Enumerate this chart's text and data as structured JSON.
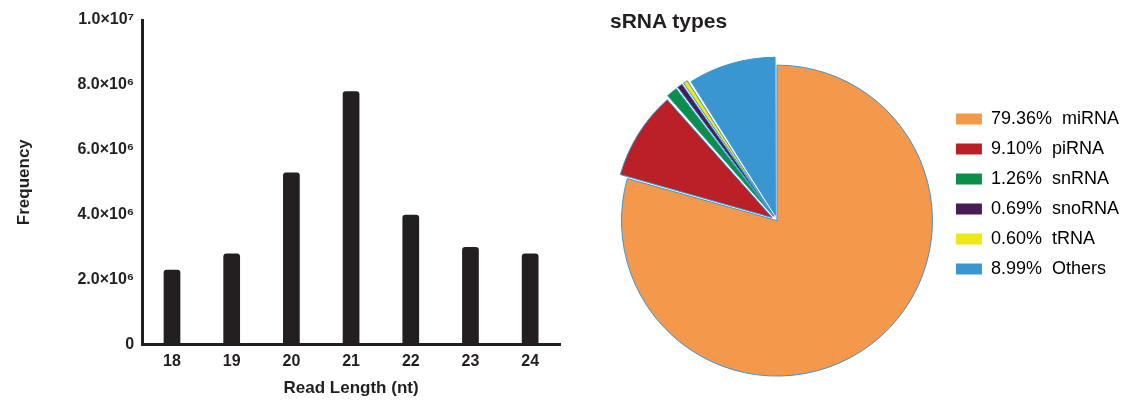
{
  "chart_data": [
    {
      "type": "bar",
      "xlabel": "Read Length (nt)",
      "ylabel": "Frequency",
      "categories": [
        "18",
        "19",
        "20",
        "21",
        "22",
        "23",
        "24"
      ],
      "values": [
        2300000,
        2800000,
        5300000,
        7800000,
        4000000,
        3000000,
        2800000
      ],
      "color": "#231f20",
      "ylim": [
        0,
        10000000
      ],
      "yticks": [
        0,
        {
          "value": 2000000,
          "label": "2.0×10⁶"
        },
        {
          "value": 4000000,
          "label": "4.0×10⁶"
        },
        {
          "value": 6000000,
          "label": "6.0×10⁶"
        },
        {
          "value": 8000000,
          "label": "8.0×10⁶"
        },
        {
          "value": 10000000,
          "label": "1.0×10⁷"
        }
      ],
      "grid": false,
      "legend": false
    },
    {
      "type": "pie",
      "title": "sRNA types",
      "categories": [
        "miRNA",
        "piRNA",
        "snRNA",
        "snoRNA",
        "tRNA",
        "Others"
      ],
      "values": [
        79.36,
        9.1,
        1.26,
        0.69,
        0.6,
        8.99
      ],
      "value_labels": [
        "79.36%",
        "9.10%",
        "1.26%",
        "0.69%",
        "0.60%",
        "8.99%"
      ],
      "colors": [
        "#f4984c",
        "#bb2026",
        "#0b8f47",
        "#4a1c56",
        "#eee814",
        "#3a96d0"
      ],
      "legend": "right"
    }
  ]
}
